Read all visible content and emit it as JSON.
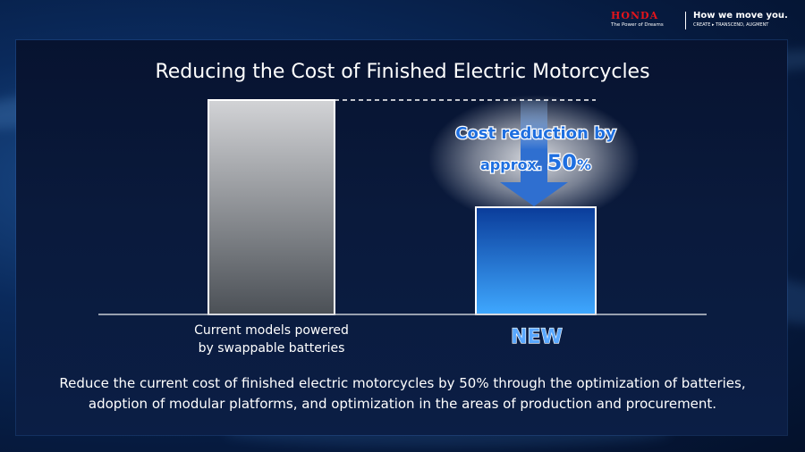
{
  "brand": {
    "name": "HONDA",
    "tagline": "The Power of Dreams",
    "slogan": "How we move you.",
    "slogan_sub": "CREATE ▸ TRANSCEND, AUGMENT",
    "brand_color": "#e4141b"
  },
  "chart_data": {
    "type": "bar",
    "title": "Reducing the Cost of Finished Electric Motorcycles",
    "categories": [
      "Current models powered by swappable batteries",
      "NEW"
    ],
    "category_lines": [
      [
        "Current models powered",
        "by swappable batteries"
      ],
      [
        "NEW"
      ]
    ],
    "values": [
      100,
      50
    ],
    "ylim": [
      0,
      100
    ],
    "grid": false,
    "reference_line": "dashed",
    "annotation": {
      "line1": "Cost reduction by",
      "line2_prefix": "approx. ",
      "line2_number": "50",
      "line2_suffix": "%"
    },
    "colors": {
      "current_top": "#d2d3d6",
      "current_bottom": "#4b5056",
      "new_top": "#0a3c9a",
      "new_bottom": "#3fa8ff",
      "arrow": "#2f6fd0",
      "annotation_text": "#1e6fe0",
      "new_label": "#5aa8ff"
    }
  },
  "caption": {
    "line1": "Reduce the current cost of finished electric motorcycles by 50% through the optimization of batteries,",
    "line2": "adoption of modular platforms, and optimization in the areas of production and procurement."
  }
}
